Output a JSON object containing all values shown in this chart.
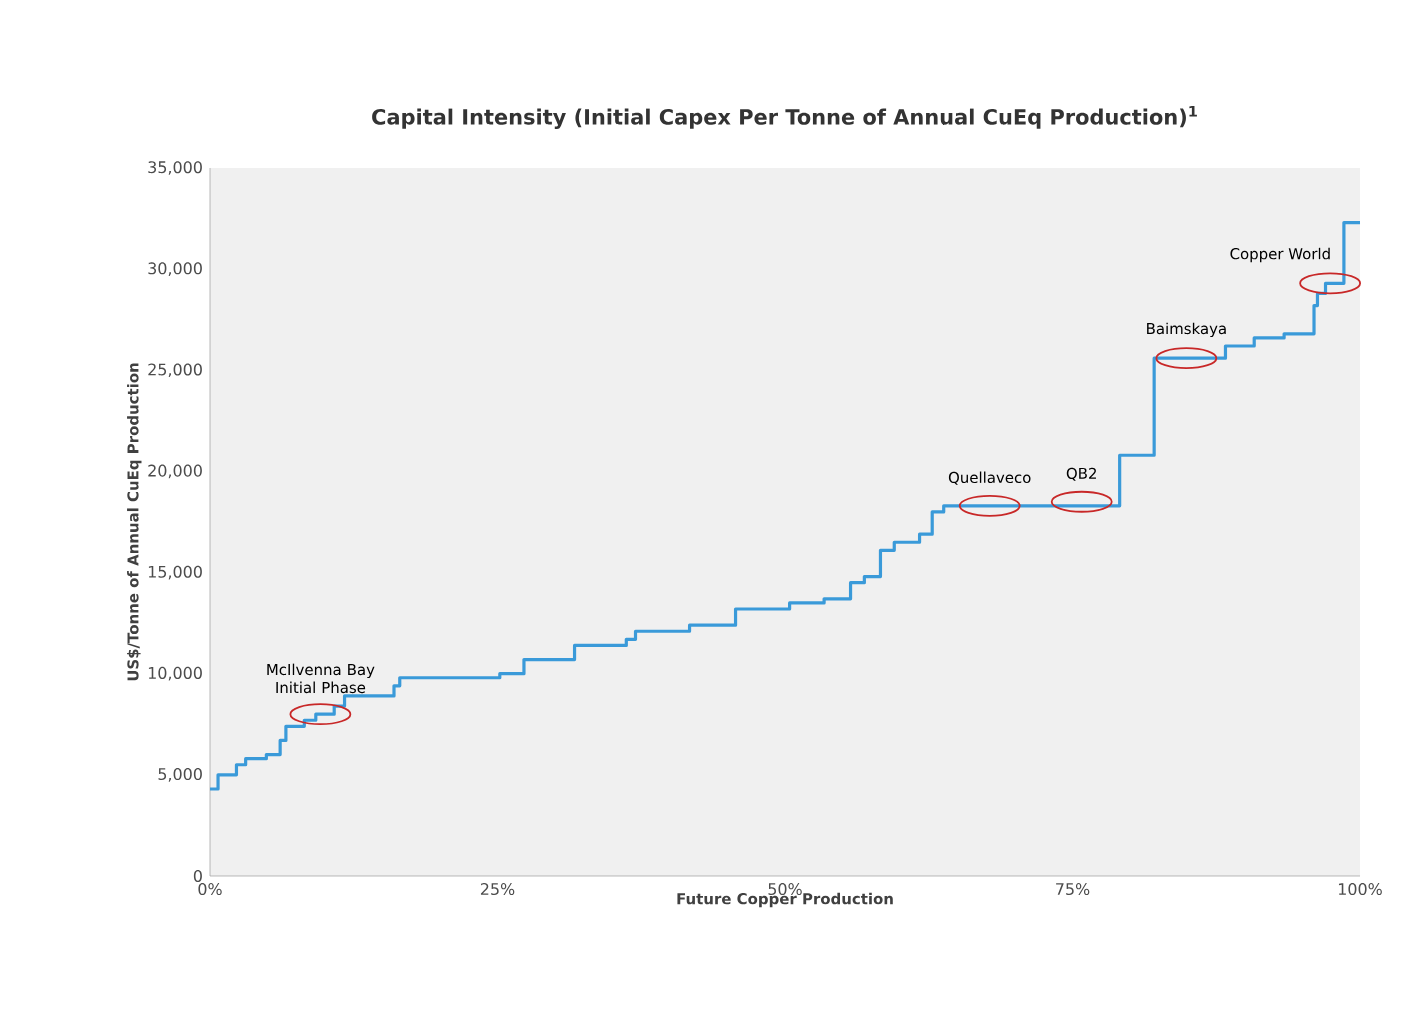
{
  "chart_data": {
    "type": "step",
    "title": "Capital Intensity (Initial Capex Per Tonne of Annual CuEq Production)$^{1}$",
    "xlabel": "Future Copper Production",
    "ylabel": "US$/Tonne of Annual CuEq Production",
    "x": [
      0,
      0.7,
      2.3,
      3.1,
      4.9,
      6.1,
      6.6,
      8.2,
      9.2,
      10.8,
      11.7,
      16,
      16.5,
      25.2,
      27.3,
      31.7,
      36.2,
      37,
      41.7,
      45.7,
      50.4,
      53.4,
      55.7,
      56.9,
      58.3,
      59.5,
      61.7,
      62.8,
      63.8,
      79.1,
      82.1,
      88.3,
      90.8,
      93.4,
      96,
      96.3,
      97,
      98.6,
      100
    ],
    "series": [
      {
        "color": "#3a9ad9",
        "values": [
          4300,
          5000,
          5500,
          5800,
          6000,
          6700,
          7400,
          7700,
          8000,
          8400,
          8900,
          9400,
          9800,
          10000,
          10700,
          11400,
          11700,
          12100,
          12400,
          13200,
          13500,
          13700,
          14500,
          14800,
          16100,
          16500,
          16900,
          18000,
          18300,
          20800,
          25600,
          26200,
          26600,
          26800,
          28200,
          28800,
          29300,
          32300,
          32300
        ]
      }
    ],
    "xlim": [
      0,
      100
    ],
    "ylim": [
      0,
      35000
    ],
    "xticks": [
      {
        "value": 0,
        "label": "0%"
      },
      {
        "value": 25,
        "label": "25%"
      },
      {
        "value": 50,
        "label": "50%"
      },
      {
        "value": 75,
        "label": "75%"
      },
      {
        "value": 100,
        "label": "100%"
      }
    ],
    "yticks": [
      {
        "value": 0,
        "label": "0"
      },
      {
        "value": 5000,
        "label": "5,000"
      },
      {
        "value": 10000,
        "label": "10,000"
      },
      {
        "value": 15000,
        "label": "15,000"
      },
      {
        "value": 20000,
        "label": "20,000"
      },
      {
        "value": 25000,
        "label": "25,000"
      },
      {
        "value": 30000,
        "label": "30,000"
      },
      {
        "value": 35000,
        "label": "35,000"
      }
    ],
    "grid": false,
    "annotations": [
      {
        "text": "McIlvenna Bay Initial Phase",
        "x": 9.6,
        "y": 8000
      },
      {
        "text": "Quellaveco",
        "x": 67.8,
        "y": 18300
      },
      {
        "text": "QB2",
        "x": 75.8,
        "y": 18500
      },
      {
        "text": "Baimskaya",
        "x": 84.9,
        "y": 25600
      },
      {
        "text": "Copper World",
        "x": 97.4,
        "y": 29300
      }
    ]
  }
}
